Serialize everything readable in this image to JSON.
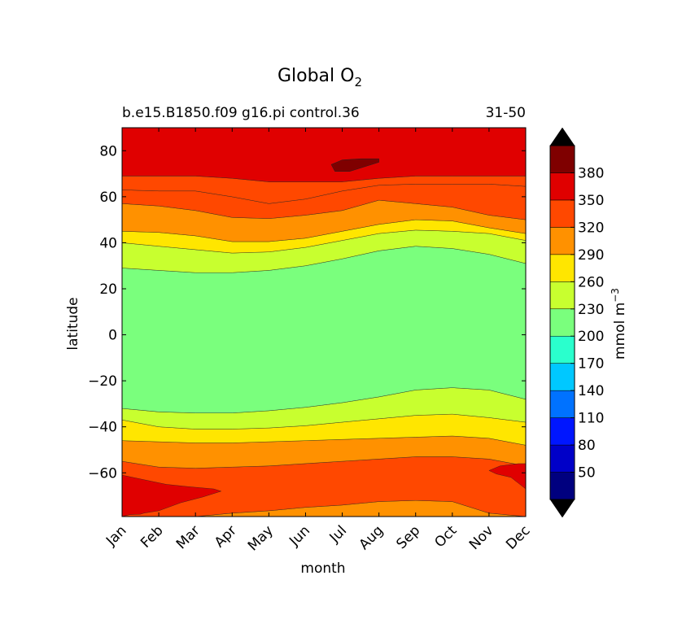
{
  "chart_data": {
    "type": "contourf",
    "title": "Global O",
    "title_subscript": "2",
    "subtitle_left": "b.e15.B1850.f09 g16.pi control.36",
    "subtitle_right": "31-50",
    "xlabel": "month",
    "ylabel": "latitude",
    "x_categories": [
      "Jan",
      "Feb",
      "Mar",
      "Apr",
      "May",
      "Jun",
      "Jul",
      "Aug",
      "Sep",
      "Oct",
      "Nov",
      "Dec"
    ],
    "xlim": [
      0,
      11
    ],
    "ylim": [
      -79,
      90
    ],
    "y_ticks": [
      80,
      60,
      40,
      20,
      0,
      -20,
      -40,
      -60
    ],
    "y_tick_labels": [
      "80",
      "60",
      "40",
      "20",
      "0",
      "−20",
      "−40",
      "−60"
    ],
    "colorbar": {
      "label": "mmol m",
      "label_superscript": "−3",
      "levels": [
        20,
        50,
        80,
        110,
        140,
        170,
        200,
        230,
        260,
        290,
        320,
        350,
        380,
        410
      ],
      "tick_labels": [
        "50",
        "80",
        "110",
        "140",
        "170",
        "200",
        "230",
        "260",
        "290",
        "320",
        "350",
        "380"
      ],
      "colors": [
        "#00007f",
        "#0000c8",
        "#0016ff",
        "#0072ff",
        "#00c8ff",
        "#2affcd",
        "#7aff7d",
        "#c8ff2f",
        "#ffe600",
        "#ff9100",
        "#ff4800",
        "#e00000",
        "#7f0000"
      ],
      "extend": "both",
      "under_color": "#000000",
      "over_color": "#000000"
    },
    "boundaries": {
      "months": [
        0,
        1,
        2,
        3,
        4,
        5,
        6,
        7,
        8,
        9,
        10,
        11
      ],
      "level_200_south": [
        -32,
        -33.5,
        -34,
        -34,
        -33,
        -31.5,
        -29.5,
        -27,
        -24,
        -23,
        -24,
        -28
      ],
      "level_230_south": [
        -37,
        -40,
        -41,
        -41,
        -40.5,
        -39.5,
        -38,
        -36.5,
        -35,
        -34.5,
        -36,
        -38
      ],
      "level_260_south": [
        -46,
        -46.5,
        -47,
        -47,
        -46.5,
        -46,
        -45.5,
        -45,
        -44.5,
        -44,
        -45,
        -48
      ],
      "level_290_south": [
        -55,
        -57.5,
        -58,
        -57.5,
        -57,
        -56,
        -55,
        -54,
        -53,
        -53,
        -54,
        -57
      ],
      "level_320_south": [
        -79,
        -79,
        -79,
        -77.5,
        -76.5,
        -75,
        -74,
        -72.5,
        -72,
        -72.5,
        -77.5,
        -79
      ],
      "level_200_north": [
        29,
        28,
        27,
        27,
        28,
        30,
        33,
        36.5,
        38.5,
        37.5,
        35,
        31
      ],
      "level_230_north": [
        40,
        38.5,
        37,
        35.5,
        36,
        38,
        41,
        44,
        45.5,
        45,
        44,
        41
      ],
      "level_260_north": [
        45,
        44.5,
        43,
        40.5,
        40.5,
        42,
        45,
        48,
        50,
        49.5,
        46.5,
        44
      ],
      "level_290_north": [
        57,
        56,
        54,
        51,
        50.5,
        52,
        54,
        58.5,
        57,
        55.5,
        52,
        50
      ],
      "level_320_north": [
        63,
        62.5,
        62.5,
        60,
        57,
        59,
        62.5,
        65,
        65.5,
        65.5,
        65.5,
        64.5
      ],
      "level_350_north": [
        69,
        69,
        69,
        68,
        66.5,
        66.5,
        66.5,
        68,
        69,
        69,
        69,
        69
      ],
      "level_380_north_patch": {
        "month_range": [
          5.7,
          7.0
        ],
        "lat_range": [
          70.5,
          77
        ]
      },
      "level_350_south_patch": {
        "month_range": [
          10.0,
          11.0
        ],
        "lat_range": [
          -69,
          -56
        ]
      },
      "level_350_south_sw_patch": {
        "month_range": [
          0,
          2.7
        ],
        "lat_range": [
          -79,
          -61
        ]
      }
    }
  }
}
